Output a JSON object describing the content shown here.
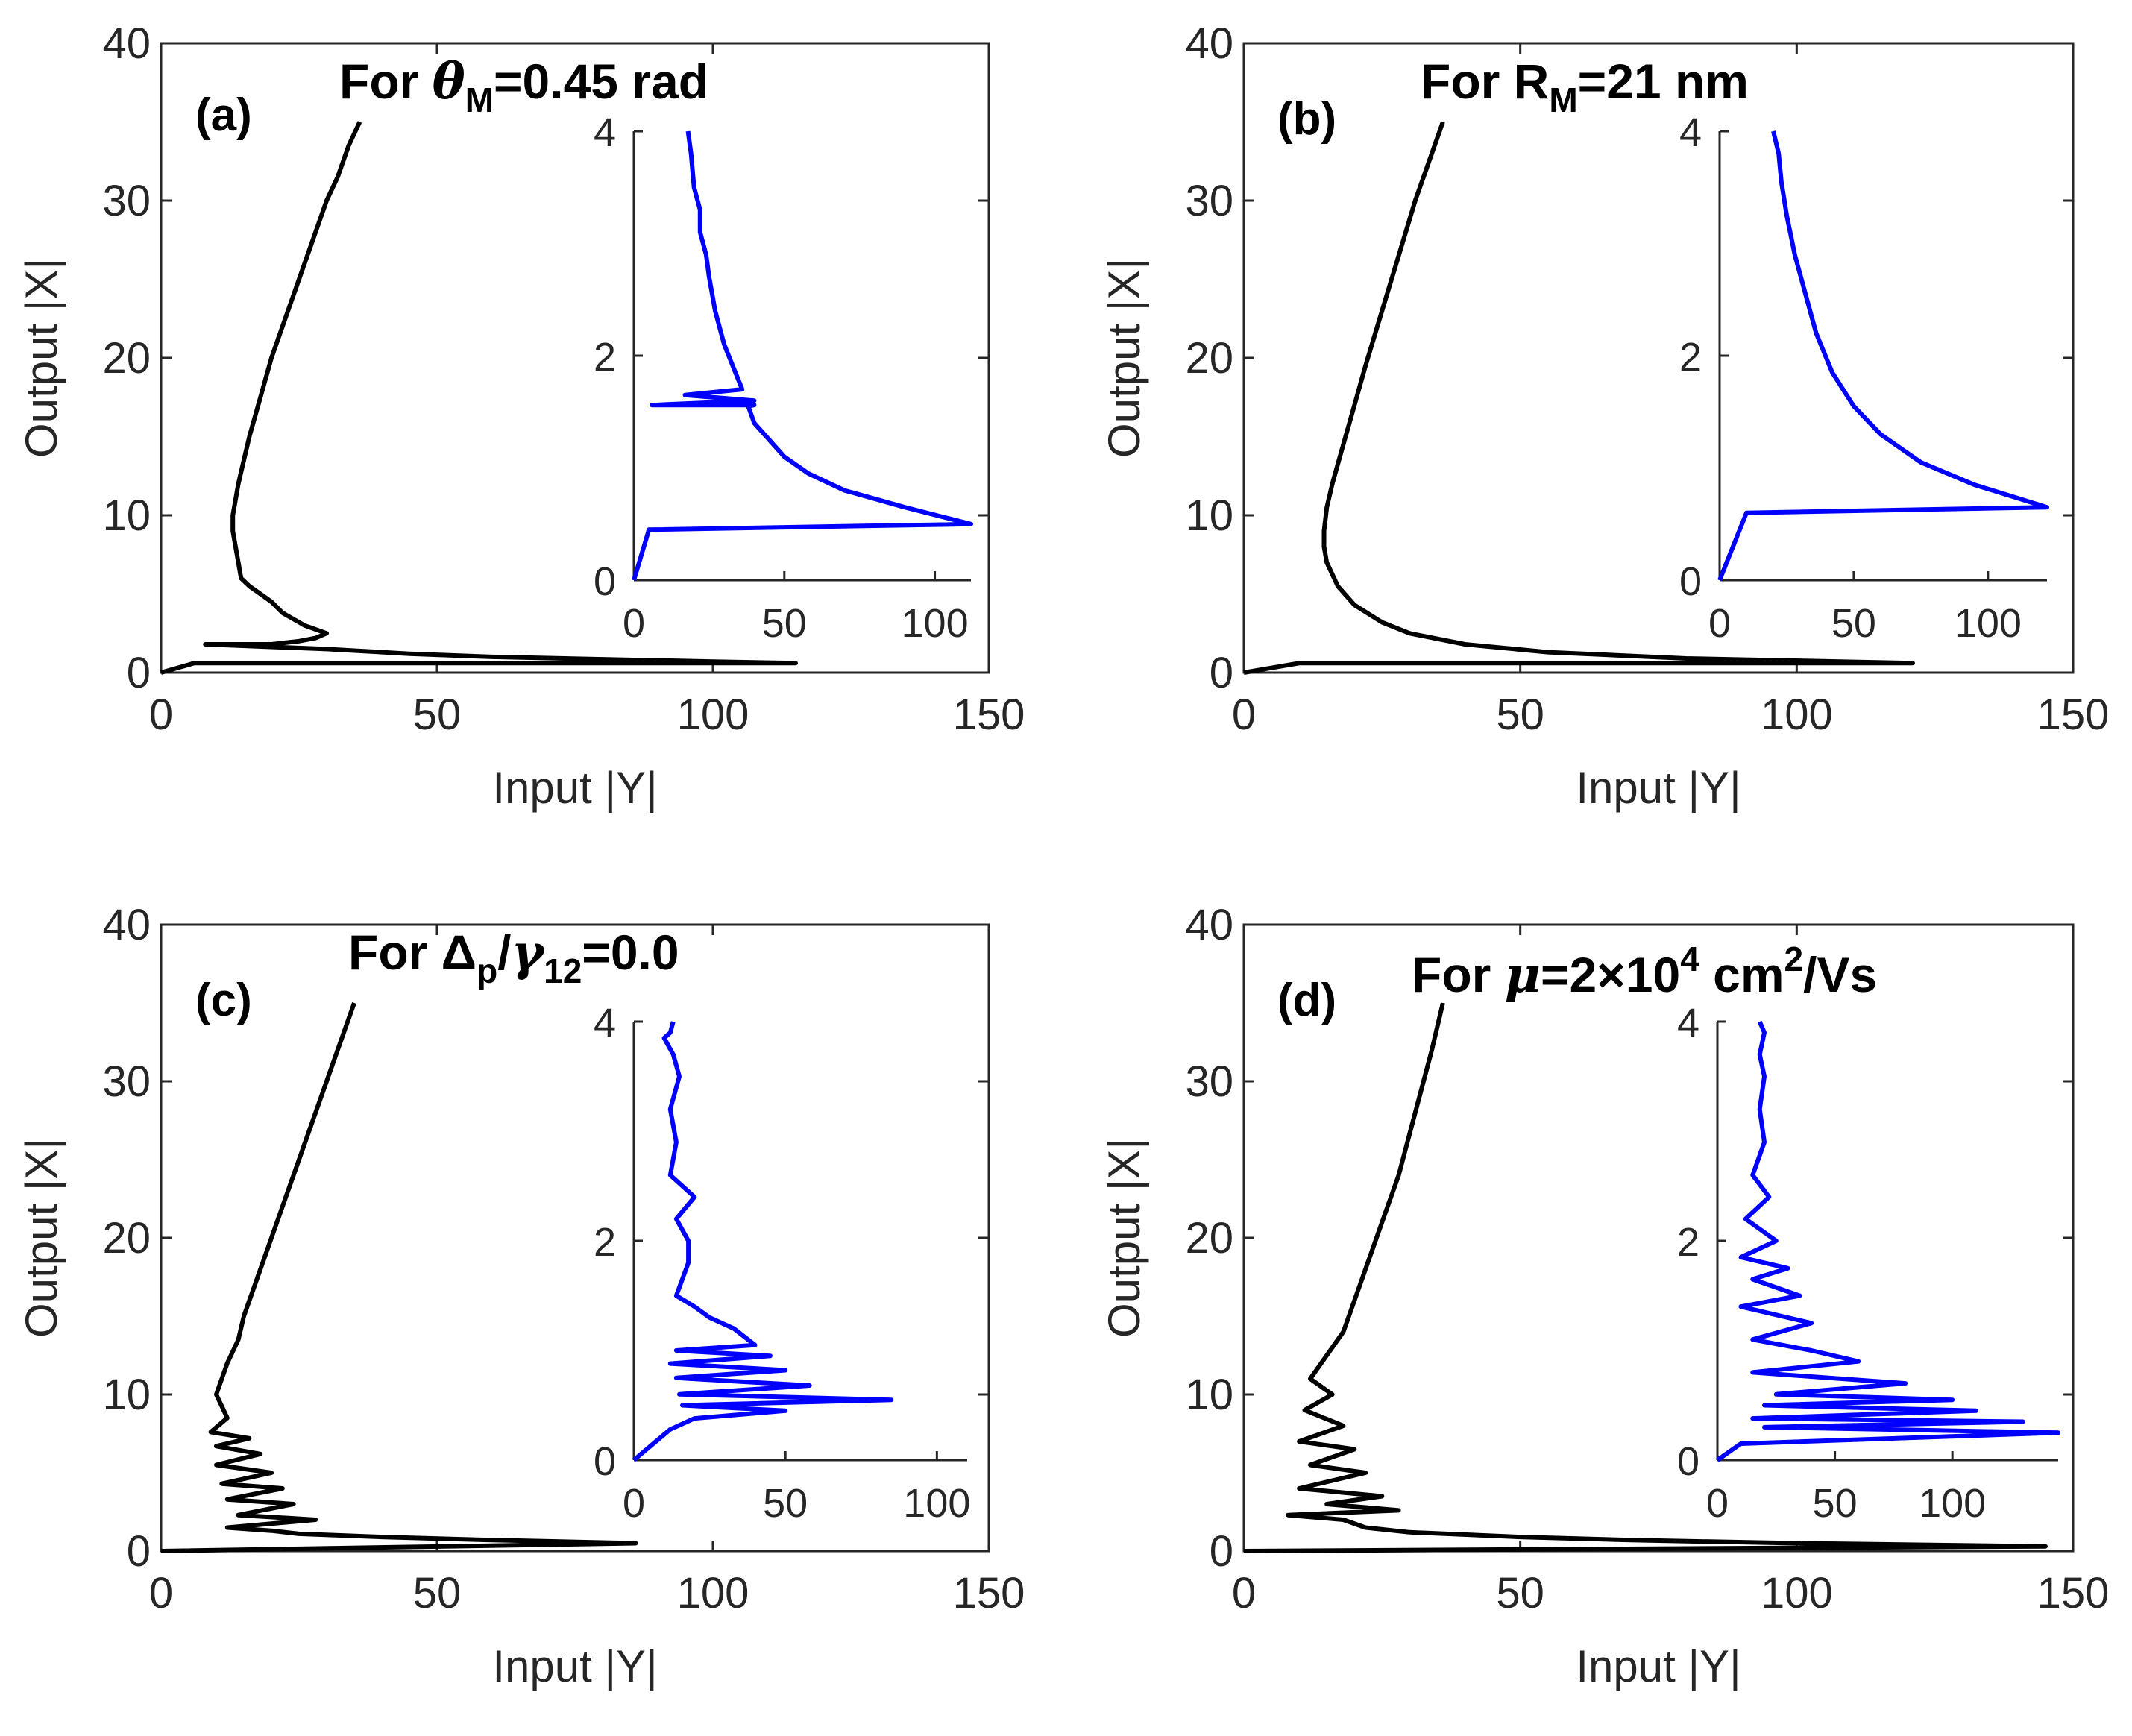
{
  "chart_data": [
    {
      "type": "line",
      "panel_label": "(a)",
      "title": {
        "prefix": "For ",
        "symbol": "θ",
        "sub": "M",
        "suffix": "=0.45 rad"
      },
      "xlabel": "Input |Y|",
      "ylabel": "Output |X|",
      "xlim": [
        0,
        150
      ],
      "ylim": [
        0,
        40
      ],
      "xticks": [
        "0",
        "50",
        "100",
        "150"
      ],
      "yticks": [
        "0",
        "10",
        "20",
        "30",
        "40"
      ],
      "color": "#000000",
      "x": [
        0,
        6,
        115,
        100,
        80,
        60,
        45,
        35,
        30,
        8,
        20,
        25,
        28,
        30,
        26,
        22,
        20,
        18,
        16,
        14.5,
        14,
        13.5,
        13,
        13,
        13.5,
        14,
        15,
        16,
        18,
        20,
        22,
        24,
        26,
        28,
        30,
        32,
        34,
        36
      ],
      "y": [
        0,
        0.6,
        0.6,
        0.7,
        0.85,
        1.0,
        1.2,
        1.4,
        1.5,
        1.8,
        1.8,
        2.0,
        2.2,
        2.5,
        3.0,
        3.8,
        4.5,
        5.0,
        5.5,
        6.0,
        7.0,
        8.0,
        9.0,
        10.0,
        11.0,
        12.0,
        13.5,
        15.0,
        17.5,
        20.0,
        22.0,
        24.0,
        26.0,
        28.0,
        30.0,
        31.5,
        33.5,
        35.0
      ],
      "inset": {
        "xlim": [
          0,
          112
        ],
        "ylim": [
          0,
          4
        ],
        "xticks": [
          "0",
          "50",
          "100"
        ],
        "yticks": [
          "0",
          "2",
          "4"
        ],
        "color": "#0000ff",
        "x": [
          0,
          5,
          112,
          90,
          70,
          58,
          50,
          45,
          40,
          38,
          40,
          6,
          40,
          17,
          36,
          33,
          30,
          27,
          25,
          24,
          22,
          22,
          20,
          19,
          18
        ],
        "y": [
          0,
          0.45,
          0.5,
          0.65,
          0.8,
          0.95,
          1.1,
          1.25,
          1.4,
          1.55,
          1.56,
          1.56,
          1.6,
          1.65,
          1.7,
          1.9,
          2.1,
          2.4,
          2.7,
          2.9,
          3.1,
          3.3,
          3.5,
          3.8,
          4.0
        ]
      }
    },
    {
      "type": "line",
      "panel_label": "(b)",
      "title": {
        "prefix": "For R",
        "symbol": "",
        "sub": "M",
        "suffix": "=21 nm"
      },
      "xlabel": "Input |Y|",
      "ylabel": "Output |X|",
      "xlim": [
        0,
        150
      ],
      "ylim": [
        0,
        40
      ],
      "xticks": [
        "0",
        "50",
        "100",
        "150"
      ],
      "yticks": [
        "0",
        "10",
        "20",
        "30",
        "40"
      ],
      "color": "#000000",
      "x": [
        0,
        10,
        121,
        80,
        55,
        40,
        30,
        25,
        20,
        17,
        15,
        14.5,
        14.5,
        15,
        16,
        18,
        20,
        22,
        25,
        28,
        31,
        34,
        36
      ],
      "y": [
        0,
        0.6,
        0.6,
        0.9,
        1.3,
        1.8,
        2.5,
        3.2,
        4.3,
        5.5,
        7.0,
        8.0,
        9.0,
        10.5,
        12.0,
        14.5,
        17.0,
        19.5,
        23.0,
        26.5,
        30.0,
        33.0,
        35.0
      ],
      "inset": {
        "xlim": [
          0,
          122
        ],
        "ylim": [
          0,
          4
        ],
        "xticks": [
          "0",
          "50",
          "100"
        ],
        "yticks": [
          "0",
          "2",
          "4"
        ],
        "color": "#0000ff",
        "x": [
          0,
          10,
          122,
          95,
          75,
          60,
          50,
          42,
          36,
          32,
          28,
          25,
          23,
          22,
          20
        ],
        "y": [
          0,
          0.6,
          0.65,
          0.85,
          1.05,
          1.3,
          1.55,
          1.85,
          2.2,
          2.55,
          2.9,
          3.25,
          3.55,
          3.8,
          4.0
        ]
      }
    },
    {
      "type": "line",
      "panel_label": "(c)",
      "title": {
        "prefix": "For Δ",
        "symbol": "",
        "sub": "p",
        "mid": "/",
        "symbol2": "γ",
        "sub2": "12",
        "suffix": "=0.0"
      },
      "xlabel": "Input |Y|",
      "ylabel": "Output |X|",
      "xlim": [
        0,
        150
      ],
      "ylim": [
        0,
        40
      ],
      "xticks": [
        "0",
        "50",
        "100",
        "150"
      ],
      "yticks": [
        "0",
        "10",
        "20",
        "30",
        "40"
      ],
      "color": "#000000",
      "x": [
        0,
        86,
        60,
        40,
        25,
        20,
        12,
        28,
        14,
        24,
        12,
        22,
        11,
        20,
        10,
        18,
        10,
        16,
        9,
        12,
        10,
        11,
        12,
        14,
        15,
        17,
        19,
        21,
        23,
        25,
        27,
        29,
        31,
        33,
        35
      ],
      "y": [
        0,
        0.5,
        0.7,
        0.9,
        1.1,
        1.3,
        1.5,
        2.0,
        2.3,
        3.0,
        3.3,
        4.0,
        4.3,
        5.0,
        5.5,
        6.2,
        6.7,
        7.2,
        7.6,
        8.5,
        10.0,
        11.0,
        12.0,
        13.5,
        15.0,
        17.0,
        19.0,
        21.0,
        23.0,
        25.0,
        27.0,
        29.0,
        31.0,
        33.0,
        35.0
      ],
      "inset": {
        "xlim": [
          0,
          110
        ],
        "ylim": [
          0,
          4
        ],
        "xticks": [
          "0",
          "50",
          "100"
        ],
        "yticks": [
          "0",
          "2",
          "4"
        ],
        "color": "#0000ff",
        "x": [
          0,
          12,
          20,
          50,
          16,
          85,
          15,
          58,
          14,
          50,
          12,
          45,
          14,
          40,
          33,
          25,
          20,
          14,
          18,
          18,
          14,
          20,
          12,
          14,
          12,
          15,
          13,
          10,
          12,
          13
        ],
        "y": [
          0,
          0.28,
          0.38,
          0.45,
          0.5,
          0.55,
          0.6,
          0.68,
          0.75,
          0.82,
          0.88,
          0.95,
          1.0,
          1.05,
          1.2,
          1.3,
          1.4,
          1.5,
          1.8,
          2.0,
          2.2,
          2.4,
          2.6,
          2.9,
          3.2,
          3.5,
          3.7,
          3.85,
          3.9,
          4.0
        ]
      }
    },
    {
      "type": "line",
      "panel_label": "(d)",
      "title": {
        "prefix": "For ",
        "symbol": "μ",
        "sub": "",
        "suffix": "=2×10",
        "sup": "4",
        "suffix2": " cm",
        "sup2": "2",
        "suffix3": "/Vs"
      },
      "xlabel": "Input |Y|",
      "ylabel": "Output |X|",
      "xlim": [
        0,
        150
      ],
      "ylim": [
        0,
        40
      ],
      "xticks": [
        "0",
        "50",
        "100",
        "150"
      ],
      "yticks": [
        "0",
        "10",
        "20",
        "30",
        "40"
      ],
      "color": "#000000",
      "x": [
        0,
        145,
        100,
        70,
        50,
        30,
        22,
        18,
        8,
        28,
        15,
        25,
        10,
        22,
        12,
        20,
        10,
        18,
        11,
        16,
        12,
        15,
        18,
        20,
        22,
        25,
        28,
        31,
        34,
        36
      ],
      "y": [
        0,
        0.3,
        0.5,
        0.7,
        0.9,
        1.2,
        1.5,
        2.0,
        2.3,
        2.6,
        3.0,
        3.5,
        4.0,
        5.0,
        5.5,
        6.5,
        7.0,
        8.0,
        9.0,
        10.0,
        11.0,
        12.5,
        14.0,
        16.0,
        18.0,
        21.0,
        24.0,
        28.0,
        32.0,
        35.0
      ],
      "inset": {
        "xlim": [
          0,
          145
        ],
        "ylim": [
          0,
          4
        ],
        "xticks": [
          "0",
          "50",
          "100"
        ],
        "yticks": [
          "0",
          "2",
          "4"
        ],
        "color": "#0000ff",
        "x": [
          0,
          10,
          145,
          20,
          130,
          15,
          110,
          20,
          100,
          25,
          80,
          15,
          60,
          40,
          15,
          40,
          10,
          35,
          15,
          30,
          10,
          25,
          12,
          22,
          15,
          20,
          18,
          20,
          18,
          20,
          18
        ],
        "y": [
          0,
          0.15,
          0.25,
          0.3,
          0.35,
          0.38,
          0.45,
          0.5,
          0.55,
          0.6,
          0.7,
          0.8,
          0.9,
          1.0,
          1.1,
          1.25,
          1.4,
          1.5,
          1.65,
          1.75,
          1.85,
          2.0,
          2.2,
          2.4,
          2.6,
          2.9,
          3.2,
          3.5,
          3.7,
          3.9,
          4.0
        ]
      }
    }
  ]
}
